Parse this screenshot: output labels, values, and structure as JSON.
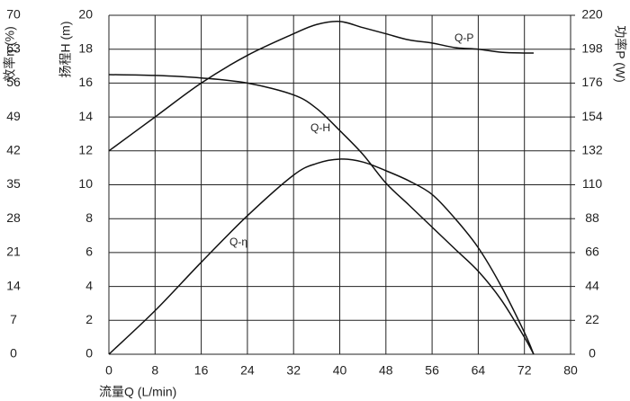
{
  "chart_data": {
    "type": "line",
    "x_label": "流量Q (L/min)",
    "y_label": "扬程H (m)",
    "y2_label": "功率P (W)",
    "y3_label": "效率η (%)",
    "x": [
      0,
      8,
      16,
      24,
      32,
      36,
      40,
      44,
      48,
      52,
      56,
      60,
      64,
      68,
      72,
      73.6
    ],
    "xlim": [
      0,
      80
    ],
    "xticks": [
      0,
      8,
      16,
      24,
      32,
      40,
      48,
      56,
      64,
      72,
      80
    ],
    "ylim": [
      0,
      20
    ],
    "yticks": [
      0,
      2,
      4,
      6,
      8,
      10,
      12,
      14,
      16,
      18,
      20
    ],
    "y2lim": [
      0,
      220
    ],
    "y2ticks": [
      0,
      22,
      44,
      66,
      88,
      110,
      132,
      154,
      176,
      198,
      220
    ],
    "y3lim": [
      0,
      70
    ],
    "y3ticks": [
      0,
      7,
      14,
      21,
      28,
      35,
      42,
      49,
      56,
      63,
      70
    ],
    "grid": true,
    "series": [
      {
        "name": "Q-H",
        "color": "#111111",
        "values": [
          16.5,
          16.45,
          16.3,
          16.0,
          15.3,
          14.5,
          13.2,
          11.8,
          10.1,
          8.8,
          7.5,
          6.2,
          4.9,
          3.2,
          1.0,
          0
        ]
      },
      {
        "name": "Q-η",
        "color": "#111111",
        "axis": "y3",
        "values": [
          0,
          9,
          19,
          28.6,
          37,
          39.4,
          40.3,
          39.7,
          37.9,
          35.8,
          33,
          28,
          22,
          14,
          4.5,
          0
        ]
      },
      {
        "name": "Q-P",
        "color": "#111111",
        "axis": "y2",
        "values": [
          132,
          154,
          176,
          194,
          208,
          214,
          216,
          212,
          208,
          204,
          202,
          199,
          198,
          196,
          195.5,
          195.5
        ]
      }
    ]
  }
}
